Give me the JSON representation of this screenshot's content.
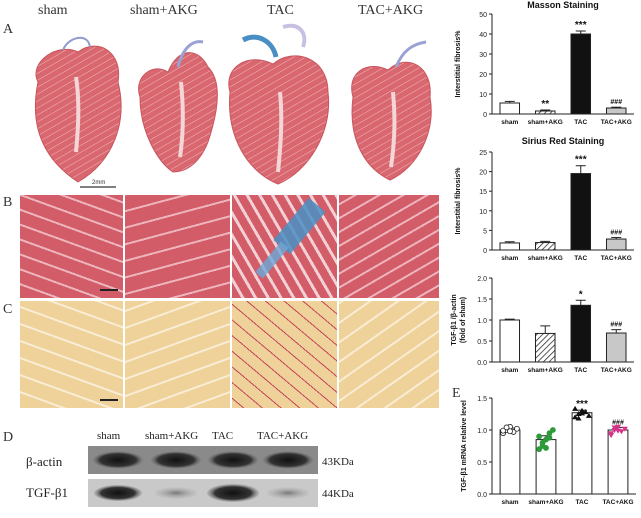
{
  "figure": {
    "panel_letters": [
      "A",
      "B",
      "C",
      "D",
      "E"
    ],
    "groups": [
      "sham",
      "sham+AKG",
      "TAC",
      "TAC+AKG"
    ],
    "scale_bar_label": "2mm"
  },
  "blot": {
    "lane_labels": [
      "sham",
      "sham+AKG",
      "TAC",
      "TAC+AKG"
    ],
    "rows": [
      {
        "protein": "β-actin",
        "size": "43KDa"
      },
      {
        "protein": "TGF-β1",
        "size": "44KDa"
      }
    ]
  },
  "colors": {
    "tissue": "#d9676f",
    "collagen_blue": "#4a8fc4",
    "sirius_bg": "#efd29a",
    "sirius_red": "#c8445b",
    "green": "#2e9b3a",
    "magenta": "#d6338a"
  },
  "chart_data": [
    {
      "type": "bar",
      "title": "Masson Staining",
      "ylabel": "Interstitial fibrosis%",
      "categories": [
        "sham",
        "sham+AKG",
        "TAC",
        "TAC+AKG"
      ],
      "values": [
        5.5,
        1.5,
        40,
        3
      ],
      "errors": [
        0.8,
        0.5,
        1.5,
        0.4
      ],
      "fills": [
        "white",
        "hatched",
        "black",
        "gray"
      ],
      "sig_labels": [
        "",
        "**",
        "***",
        "###"
      ],
      "ylim": [
        0,
        50
      ],
      "yticks": [
        "0",
        "10",
        "20",
        "30",
        "40",
        "50"
      ]
    },
    {
      "type": "bar",
      "title": "Sirius Red Staining",
      "ylabel": "Interstitial fibrosis%",
      "categories": [
        "sham",
        "sham+AKG",
        "TAC",
        "TAC+AKG"
      ],
      "values": [
        1.8,
        1.9,
        19.5,
        2.8
      ],
      "errors": [
        0.3,
        0.3,
        2.0,
        0.4
      ],
      "fills": [
        "white",
        "hatched",
        "black",
        "gray"
      ],
      "sig_labels": [
        "",
        "",
        "***",
        "###"
      ],
      "ylim": [
        0,
        25
      ],
      "yticks": [
        "0",
        "5",
        "10",
        "15",
        "20",
        "25"
      ]
    },
    {
      "type": "bar",
      "title": "",
      "ylabel": "TGF-β1 /β-actin\n(fold of sham)",
      "categories": [
        "sham",
        "sham+AKG",
        "TAC",
        "TAC+AKG"
      ],
      "values": [
        1.0,
        0.68,
        1.35,
        0.69
      ],
      "errors": [
        0.02,
        0.18,
        0.12,
        0.08
      ],
      "fills": [
        "white",
        "hatched",
        "black",
        "gray"
      ],
      "sig_labels": [
        "",
        "",
        "*",
        "###"
      ],
      "ylim": [
        0,
        2.0
      ],
      "yticks": [
        "0.0",
        "0.5",
        "1.0",
        "1.5",
        "2.0"
      ]
    },
    {
      "type": "bar",
      "title": "",
      "ylabel": "TGF-β1 mRNA relative level",
      "categories": [
        "sham",
        "sham+AKG",
        "TAC",
        "TAC+AKG"
      ],
      "values": [
        1.0,
        0.85,
        1.27,
        1.0
      ],
      "errors": [
        0.03,
        0.06,
        0.04,
        0.04
      ],
      "sig_labels": [
        "",
        "",
        "***",
        "###"
      ],
      "ylim": [
        0,
        1.5
      ],
      "yticks": [
        "0.0",
        "0.5",
        "1.0",
        "1.5"
      ],
      "points": [
        [
          0.95,
          1.0,
          1.05,
          0.97,
          1.02,
          0.99,
          1.04,
          0.98
        ],
        [
          0.7,
          0.75,
          0.85,
          0.95,
          1.0,
          0.9,
          0.8,
          0.72,
          0.88
        ],
        [
          1.2,
          1.25,
          1.3,
          1.28,
          1.22,
          1.33,
          1.18,
          1.26
        ],
        [
          0.95,
          1.0,
          1.05,
          0.98,
          1.02,
          0.92,
          1.04,
          0.99
        ]
      ],
      "marker_colors": [
        "white",
        "#2e9b3a",
        "black",
        "#d6338a"
      ]
    }
  ]
}
